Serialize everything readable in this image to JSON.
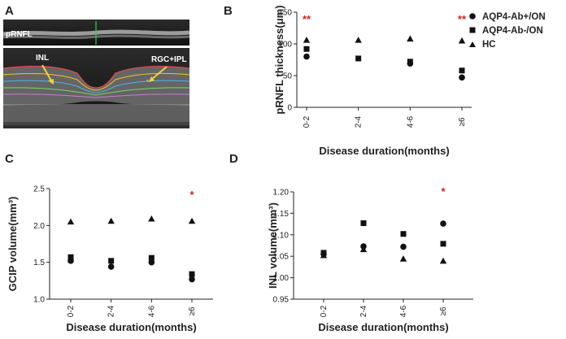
{
  "panels": {
    "a": {
      "label": "A",
      "prnfl_label": "pRNFL",
      "inl_label": "INL",
      "rgc_label": "RGC+IPL"
    },
    "b": {
      "label": "B"
    },
    "c": {
      "label": "C"
    },
    "d": {
      "label": "D"
    }
  },
  "legend": [
    "AQP4-Ab+/ON",
    "AQP4-Ab-/ON",
    "HC"
  ],
  "colors": {
    "marker": "#111111",
    "significance": "#cc2222"
  },
  "chart_data": [
    {
      "id": "b",
      "type": "scatter",
      "title": "",
      "xlabel": "Disease duration(months)",
      "ylabel": "pRNFL thickness(μm)",
      "categories": [
        "0-2",
        "2-4",
        "4-6",
        "≥6"
      ],
      "ylim": [
        0,
        150
      ],
      "yticks": [
        "0",
        "50",
        "100",
        "150"
      ],
      "series": [
        {
          "name": "AQP4-Ab+/ON",
          "marker": "circle",
          "values": [
            80,
            null,
            69,
            47
          ]
        },
        {
          "name": "AQP4-Ab-/ON",
          "marker": "square",
          "values": [
            92,
            77,
            72,
            58
          ]
        },
        {
          "name": "HC",
          "marker": "triangle",
          "values": [
            106,
            106,
            108,
            105
          ]
        }
      ],
      "annotations": [
        {
          "category": "0-2",
          "text": "**"
        },
        {
          "category": "≥6",
          "text": "**"
        }
      ]
    },
    {
      "id": "c",
      "type": "scatter",
      "title": "",
      "xlabel": "Disease duration(months)",
      "ylabel": "GCIP volume(mm³)",
      "categories": [
        "0-2",
        "2-4",
        "4-6",
        "≥6"
      ],
      "ylim": [
        1.0,
        2.5
      ],
      "yticks": [
        "1.0",
        "1.5",
        "2.0",
        "2.5"
      ],
      "series": [
        {
          "name": "AQP4-Ab+/ON",
          "marker": "circle",
          "values": [
            1.52,
            1.44,
            1.5,
            1.27
          ]
        },
        {
          "name": "AQP4-Ab-/ON",
          "marker": "square",
          "values": [
            1.57,
            1.52,
            1.56,
            1.34
          ]
        },
        {
          "name": "HC",
          "marker": "triangle",
          "values": [
            2.05,
            2.06,
            2.09,
            2.06
          ]
        }
      ],
      "annotations": [
        {
          "category": "≥6",
          "text": "*"
        }
      ]
    },
    {
      "id": "d",
      "type": "scatter",
      "title": "",
      "xlabel": "Disease duration(months)",
      "ylabel": "INL volume(mm³)",
      "categories": [
        "0-2",
        "2-4",
        "4-6",
        "≥6"
      ],
      "ylim": [
        0.95,
        1.2
      ],
      "yticks": [
        "0.95",
        "1.00",
        "1.05",
        "1.10",
        "1.15",
        "1.20"
      ],
      "series": [
        {
          "name": "AQP4-Ab+/ON",
          "marker": "circle",
          "values": [
            1.055,
            1.073,
            1.072,
            1.126
          ]
        },
        {
          "name": "AQP4-Ab-/ON",
          "marker": "square",
          "values": [
            1.058,
            1.127,
            1.102,
            1.079
          ]
        },
        {
          "name": "HC",
          "marker": "triangle",
          "values": [
            1.052,
            1.066,
            1.044,
            1.039
          ]
        }
      ],
      "annotations": [
        {
          "category": "≥6",
          "text": "*"
        }
      ]
    }
  ]
}
